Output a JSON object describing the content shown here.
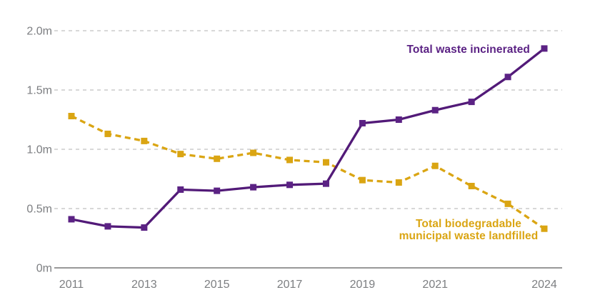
{
  "chart_data": {
    "type": "line",
    "title": "",
    "xlabel": "",
    "ylabel": "",
    "value_suffix": "m",
    "ylim": [
      0,
      2.0
    ],
    "grid": "horizontal-dashed",
    "x": [
      2011,
      2012,
      2013,
      2014,
      2015,
      2016,
      2017,
      2018,
      2019,
      2020,
      2021,
      2022,
      2023,
      2024
    ],
    "x_tick_labels": [
      "2011",
      "2013",
      "2015",
      "2017",
      "2019",
      "2021",
      "2024"
    ],
    "y_ticks": [
      0,
      0.5,
      1.0,
      1.5,
      2.0
    ],
    "y_tick_labels": [
      "0m",
      "0.5m",
      "1.0m",
      "1.5m",
      "2.0m"
    ],
    "legend_position": "inline-annotations",
    "series": [
      {
        "name": "Total waste incinerated",
        "label_lines": [
          "Total waste incinerated"
        ],
        "color": "#5B2284",
        "line_color": "#521A78",
        "line_style": "solid",
        "marker": "square",
        "values": [
          0.41,
          0.35,
          0.34,
          0.66,
          0.65,
          0.68,
          0.7,
          0.71,
          1.22,
          1.25,
          1.33,
          1.4,
          1.61,
          1.85
        ]
      },
      {
        "name": "Total biodegradable municipal waste landfilled",
        "label_lines": [
          "Total biodegradable",
          "municipal waste landfilled"
        ],
        "color": "#DAA513",
        "line_color": "#DAA513",
        "line_style": "dashed",
        "marker": "square",
        "values": [
          1.28,
          1.13,
          1.07,
          0.96,
          0.92,
          0.97,
          0.91,
          0.89,
          0.74,
          0.72,
          0.86,
          0.69,
          0.54,
          0.33
        ]
      }
    ],
    "colors": {
      "gridline": "#cbcbcb",
      "axis_line": "#8a8a8a",
      "tick_text": "#7c7e81"
    }
  }
}
